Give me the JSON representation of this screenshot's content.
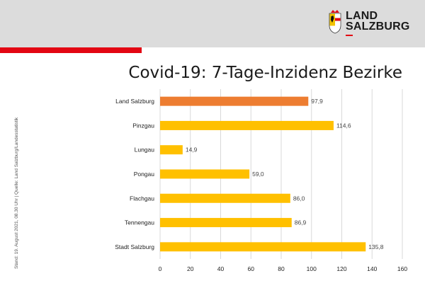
{
  "brand": {
    "line1": "LAND",
    "line2": "SALZBURG",
    "header_color": "#dcdcdc",
    "accent_color": "#e30613"
  },
  "title": "Covid-19: 7-Tage-Inzidenz Bezirke",
  "side_note": "Stand: 19. August 2021, 08.30 Uhr | Quelle: Land Salzburg/Landesstatistik",
  "chart_data": {
    "type": "bar",
    "orientation": "horizontal",
    "title": "Covid-19: 7-Tage-Inzidenz Bezirke",
    "categories": [
      "Land Salzburg",
      "Pinzgau",
      "Lungau",
      "Pongau",
      "Flachgau",
      "Tennengau",
      "Stadt Salzburg"
    ],
    "values": [
      97.9,
      114.6,
      14.9,
      59.0,
      86.0,
      86.9,
      135.8
    ],
    "value_labels": [
      "97,9",
      "114,6",
      "14,9",
      "59,0",
      "86,0",
      "86,9",
      "135,8"
    ],
    "bar_colors": [
      "#ed7d31",
      "#ffc000",
      "#ffc000",
      "#ffc000",
      "#ffc000",
      "#ffc000",
      "#ffc000"
    ],
    "xlim": [
      0,
      160
    ],
    "xticks": [
      0,
      20,
      40,
      60,
      80,
      100,
      120,
      140,
      160
    ],
    "grid": true,
    "xlabel": "",
    "ylabel": ""
  }
}
